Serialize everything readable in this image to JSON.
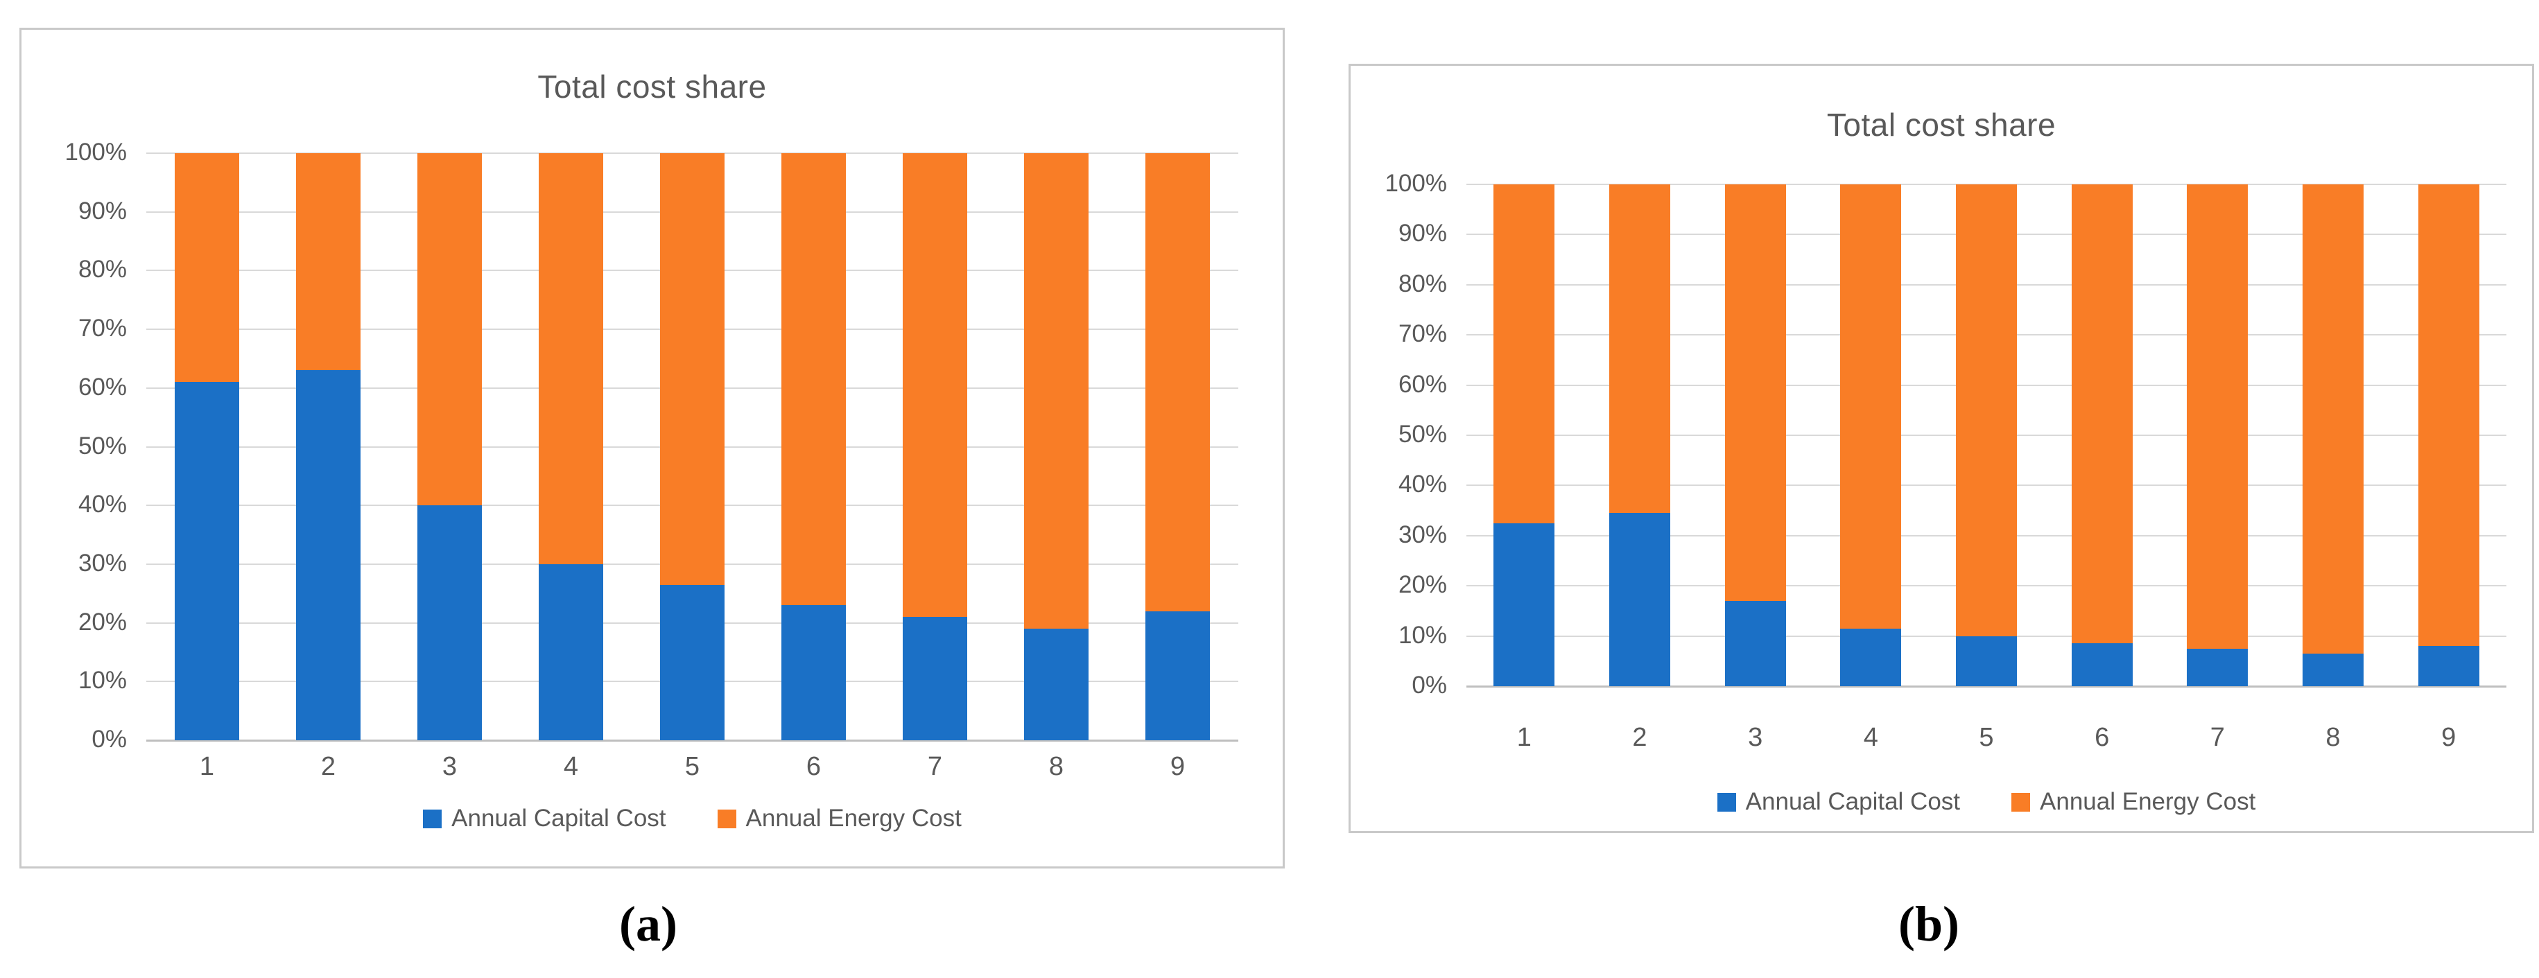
{
  "figure": {
    "panels": [
      {
        "caption": "(a)",
        "title": "Total cost share"
      },
      {
        "caption": "(b)",
        "title": "Total cost share"
      }
    ]
  },
  "colors": {
    "capital_blue": "#1b70c6",
    "energy_orange": "#f97d26",
    "gridline": "#d9d9d9",
    "axis_line": "#bfbfbf",
    "chart_text": "#595959",
    "panel_border": "#c9c9c9"
  },
  "chart_data": [
    {
      "type": "bar",
      "stacked": true,
      "title": "Total cost share",
      "categories": [
        "1",
        "2",
        "3",
        "4",
        "5",
        "6",
        "7",
        "8",
        "9"
      ],
      "series": [
        {
          "name": "Annual Capital Cost",
          "color": "#1b70c6",
          "values": [
            61,
            63,
            40,
            30,
            26.5,
            23,
            21,
            19,
            22
          ]
        },
        {
          "name": "Annual Energy Cost",
          "color": "#f97d26",
          "values": [
            39,
            37,
            60,
            70,
            73.5,
            77,
            79,
            81,
            78
          ]
        }
      ],
      "xlabel": "",
      "ylabel": "",
      "ylim": [
        0,
        100
      ],
      "yticks": [
        "0%",
        "10%",
        "20%",
        "30%",
        "40%",
        "50%",
        "60%",
        "70%",
        "80%",
        "90%",
        "100%"
      ],
      "grid": true,
      "legend_position": "bottom"
    },
    {
      "type": "bar",
      "stacked": true,
      "title": "Total cost share",
      "categories": [
        "1",
        "2",
        "3",
        "4",
        "5",
        "6",
        "7",
        "8",
        "9"
      ],
      "series": [
        {
          "name": "Annual Capital Cost",
          "color": "#1b70c6",
          "values": [
            32.5,
            34.5,
            17,
            11.5,
            10,
            8.5,
            7.5,
            6.5,
            8
          ]
        },
        {
          "name": "Annual Energy Cost",
          "color": "#f97d26",
          "values": [
            67.5,
            65.5,
            83,
            88.5,
            90,
            91.5,
            92.5,
            93.5,
            92
          ]
        }
      ],
      "xlabel": "",
      "ylabel": "",
      "ylim": [
        0,
        100
      ],
      "yticks": [
        "0%",
        "10%",
        "20%",
        "30%",
        "40%",
        "50%",
        "60%",
        "70%",
        "80%",
        "90%",
        "100%"
      ],
      "grid": true,
      "legend_position": "bottom"
    }
  ]
}
